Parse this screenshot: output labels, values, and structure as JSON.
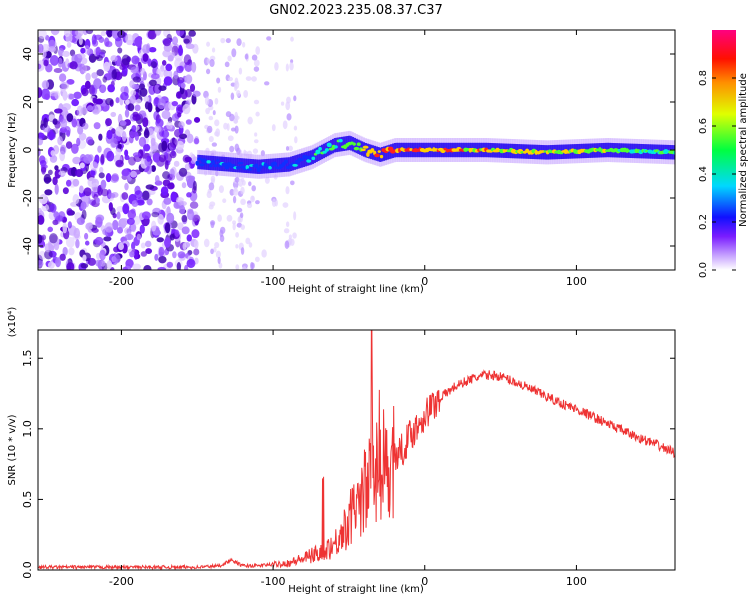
{
  "title": "GN02.2023.235.08.37.C37",
  "chart_data": [
    {
      "type": "heatmap",
      "xlabel": "Height of straight line (km)",
      "ylabel": "Frequency (Hz)",
      "xlim": [
        -255,
        165
      ],
      "ylim": [
        -50,
        50
      ],
      "xticks": [
        -200,
        -100,
        0,
        100
      ],
      "yticks": [
        -40,
        -20,
        0,
        20,
        40
      ],
      "colorbar": {
        "label": "Normalized spectral amplitude",
        "range": [
          0,
          1
        ],
        "ticks": [
          "0.0",
          "0.2",
          "0.4",
          "0.6",
          "0.8"
        ],
        "colormap": [
          "#ffffff",
          "#b78cff",
          "#6200e0",
          "#0000ff",
          "#00e0ff",
          "#00ff40",
          "#ffff00",
          "#ff8000",
          "#ff0000",
          "#ff00a0"
        ]
      },
      "description_points": {
        "noise_region_x": [
          -255,
          -150
        ],
        "sparse_noise_x": [
          -145,
          -85
        ],
        "signal_track": {
          "x": [
            -150,
            -130,
            -110,
            -90,
            -75,
            -60,
            -50,
            -40,
            -30,
            -20,
            0,
            40,
            80,
            120,
            165
          ],
          "freq": [
            -5,
            -6,
            -7,
            -6,
            -3,
            2,
            3,
            0,
            -2,
            0,
            0,
            0,
            -1,
            0,
            -1
          ],
          "amplitude": [
            0.35,
            0.4,
            0.4,
            0.35,
            0.5,
            0.6,
            0.65,
            0.8,
            0.85,
            0.9,
            0.85,
            0.8,
            0.75,
            0.7,
            0.6
          ]
        }
      }
    },
    {
      "type": "line",
      "xlabel": "Height of straight line (km)",
      "ylabel": "SNR (10 * v/v)",
      "yscale_note": "(x10⁴)",
      "xlim": [
        -255,
        165
      ],
      "ylim": [
        0,
        1.7
      ],
      "xticks": [
        -200,
        -100,
        0,
        100
      ],
      "yticks": [
        "0.0",
        "0.5",
        "1.0",
        "1.5"
      ],
      "color": "#ee3333",
      "series": [
        {
          "x": [
            -255,
            -230,
            -200,
            -170,
            -150,
            -135,
            -128,
            -120,
            -110,
            -100,
            -90,
            -80,
            -70,
            -60,
            -55,
            -50,
            -45,
            -40,
            -35,
            -30,
            -25,
            -20,
            -15,
            -10,
            -5,
            0,
            10,
            20,
            30,
            40,
            45,
            50,
            60,
            70,
            80,
            90,
            100,
            110,
            120,
            130,
            140,
            150,
            165
          ],
          "y": [
            0.02,
            0.02,
            0.02,
            0.02,
            0.02,
            0.03,
            0.07,
            0.03,
            0.03,
            0.04,
            0.05,
            0.08,
            0.12,
            0.18,
            0.25,
            0.35,
            0.45,
            0.55,
            0.65,
            0.7,
            0.75,
            0.8,
            0.85,
            0.95,
            1.02,
            1.1,
            1.22,
            1.3,
            1.35,
            1.38,
            1.38,
            1.37,
            1.33,
            1.28,
            1.23,
            1.18,
            1.14,
            1.09,
            1.04,
            0.99,
            0.94,
            0.9,
            0.83
          ]
        }
      ],
      "peak": {
        "x": -35,
        "y": 1.7
      }
    }
  ]
}
